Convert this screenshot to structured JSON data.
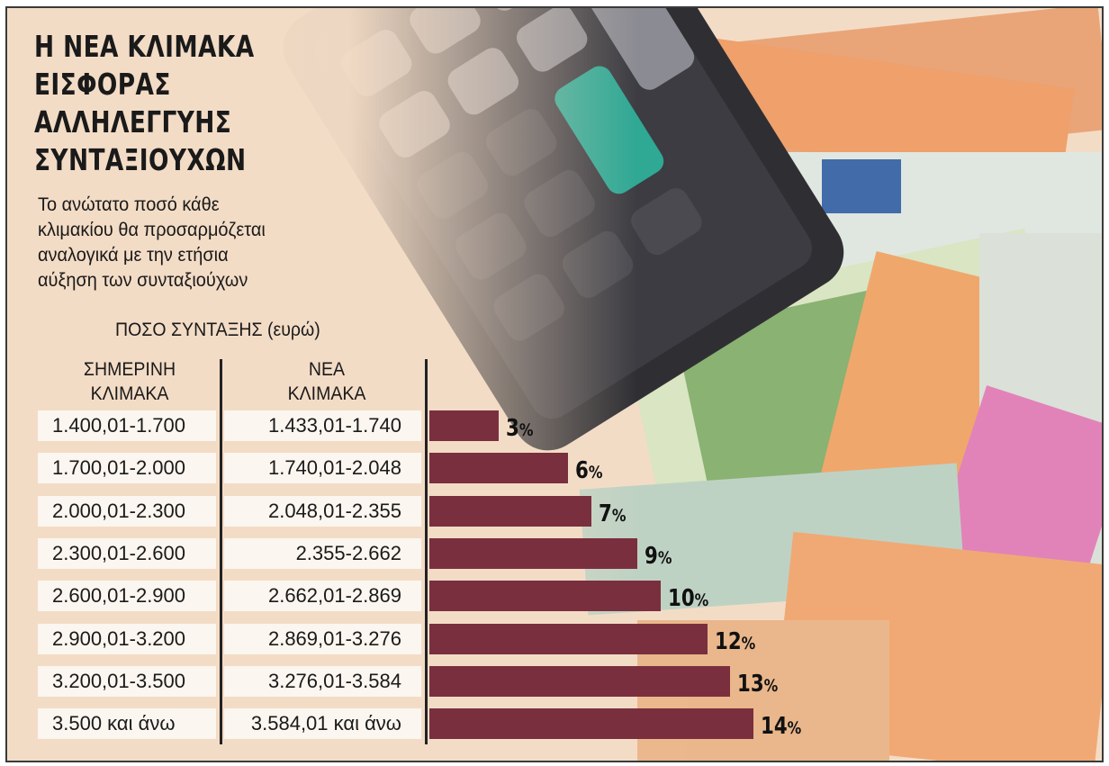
{
  "title_lines": [
    "Η ΝΕΑ ΚΛΙΜΑΚΑ",
    "ΕΙΣΦΟΡΑΣ",
    "ΑΛΛΗΛΕΓΓΥΗΣ",
    "ΣΥΝΤΑΞΙΟΥΧΩΝ"
  ],
  "subtitle_lines": [
    "Το ανώτατο ποσό κάθε",
    "κλιμακίου θα προσαρμόζεται",
    "αναλογικά με την ετήσια",
    "αύξηση των συνταξιούχων"
  ],
  "unit_label": "ΠΟΣΟ ΣΥΝΤΑΞΗΣ (ευρώ)",
  "columns": {
    "current": [
      "ΣΗΜΕΡΙΝΗ",
      "ΚΛΙΜΑΚΑ"
    ],
    "new": [
      "ΝΕΑ",
      "ΚΛΙΜΑΚΑ"
    ]
  },
  "colors": {
    "bar": "#7a2f3f",
    "background": "#f3dcc6",
    "cell": "#fbf6ef"
  },
  "chart_data": {
    "type": "bar",
    "orientation": "horizontal",
    "unit": "%",
    "rows": [
      {
        "current": "1.400,01-1.700",
        "new": "1.433,01-1.740",
        "value": 3
      },
      {
        "current": "1.700,01-2.000",
        "new": "1.740,01-2.048",
        "value": 6
      },
      {
        "current": "2.000,01-2.300",
        "new": "2.048,01-2.355",
        "value": 7
      },
      {
        "current": "2.300,01-2.600",
        "new": "2.355-2.662",
        "value": 9
      },
      {
        "current": "2.600,01-2.900",
        "new": "2.662,01-2.869",
        "value": 10
      },
      {
        "current": "2.900,01-3.200",
        "new": "2.869,01-3.276",
        "value": 12
      },
      {
        "current": "3.200,01-3.500",
        "new": "3.276,01-3.584",
        "value": 13
      },
      {
        "current": "3.500 και άνω",
        "new": "3.584,01 και άνω",
        "value": 14
      }
    ]
  }
}
